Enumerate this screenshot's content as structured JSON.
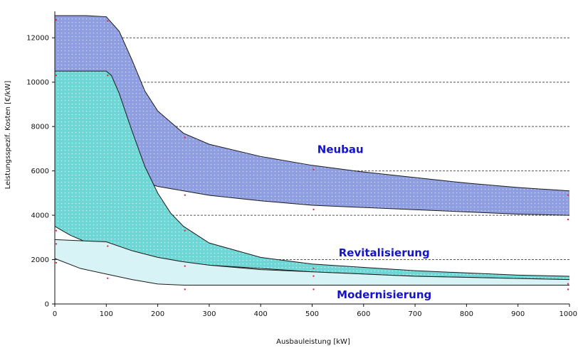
{
  "chart_data": {
    "type": "area",
    "title": "",
    "xlabel": "Ausbauleistung [kW]",
    "ylabel": "Leistungsspezif. Kosten [€/kW]",
    "xlim": [
      0,
      1000
    ],
    "ylim": [
      0,
      13000
    ],
    "xticks": [
      0,
      100,
      200,
      300,
      400,
      500,
      600,
      700,
      800,
      900,
      1000
    ],
    "yticks": [
      0,
      2000,
      4000,
      6000,
      8000,
      10000,
      12000
    ],
    "grid": "horizontal dashed",
    "legend": "none",
    "series": [
      {
        "name": "Neubau",
        "color": "#8f9ee0",
        "upper": [
          [
            0,
            13000
          ],
          [
            60,
            13000
          ],
          [
            100,
            12950
          ],
          [
            125,
            12300
          ],
          [
            150,
            11000
          ],
          [
            175,
            9600
          ],
          [
            200,
            8700
          ],
          [
            250,
            7700
          ],
          [
            300,
            7200
          ],
          [
            400,
            6650
          ],
          [
            500,
            6250
          ],
          [
            600,
            5950
          ],
          [
            700,
            5700
          ],
          [
            800,
            5450
          ],
          [
            900,
            5250
          ],
          [
            1000,
            5100
          ]
        ],
        "lower": [
          [
            0,
            13000
          ],
          [
            0,
            7600
          ],
          [
            30,
            7350
          ],
          [
            60,
            7000
          ],
          [
            100,
            6450
          ],
          [
            130,
            6000
          ],
          [
            160,
            5600
          ],
          [
            200,
            5300
          ],
          [
            250,
            5100
          ],
          [
            300,
            4900
          ],
          [
            400,
            4650
          ],
          [
            500,
            4450
          ],
          [
            600,
            4350
          ],
          [
            700,
            4250
          ],
          [
            800,
            4150
          ],
          [
            900,
            4050
          ],
          [
            1000,
            4000
          ]
        ]
      },
      {
        "name": "Revitalisierung",
        "color": "#6fd6d6",
        "upper": [
          [
            0,
            10500
          ],
          [
            100,
            10500
          ],
          [
            110,
            10300
          ],
          [
            125,
            9500
          ],
          [
            150,
            7800
          ],
          [
            175,
            6200
          ],
          [
            200,
            5000
          ],
          [
            225,
            4100
          ],
          [
            250,
            3500
          ],
          [
            300,
            2750
          ],
          [
            400,
            2100
          ],
          [
            500,
            1800
          ],
          [
            600,
            1650
          ],
          [
            700,
            1500
          ],
          [
            800,
            1400
          ],
          [
            900,
            1300
          ],
          [
            1000,
            1250
          ]
        ],
        "lower": [
          [
            0,
            3500
          ],
          [
            30,
            3100
          ],
          [
            60,
            2800
          ],
          [
            100,
            2500
          ],
          [
            150,
            2200
          ],
          [
            200,
            2000
          ],
          [
            250,
            1850
          ],
          [
            300,
            1750
          ],
          [
            400,
            1600
          ],
          [
            500,
            1450
          ],
          [
            600,
            1350
          ],
          [
            700,
            1250
          ],
          [
            800,
            1200
          ],
          [
            900,
            1150
          ],
          [
            1000,
            1100
          ]
        ]
      },
      {
        "name": "Modernisierung",
        "color": "#d8f3f5",
        "upper": [
          [
            0,
            2900
          ],
          [
            100,
            2800
          ],
          [
            150,
            2400
          ],
          [
            200,
            2100
          ],
          [
            250,
            1900
          ],
          [
            300,
            1750
          ],
          [
            400,
            1550
          ],
          [
            500,
            1450
          ],
          [
            600,
            1350
          ],
          [
            700,
            1250
          ],
          [
            800,
            1200
          ],
          [
            900,
            1150
          ],
          [
            1000,
            1100
          ]
        ],
        "lower": [
          [
            0,
            2050
          ],
          [
            50,
            1600
          ],
          [
            100,
            1350
          ],
          [
            150,
            1100
          ],
          [
            200,
            900
          ],
          [
            250,
            850
          ],
          [
            300,
            850
          ],
          [
            400,
            850
          ],
          [
            500,
            850
          ],
          [
            600,
            850
          ],
          [
            700,
            850
          ],
          [
            800,
            850
          ],
          [
            900,
            850
          ],
          [
            1000,
            850
          ]
        ]
      }
    ],
    "annotations": [
      {
        "text": "Neubau",
        "x": 555,
        "y": 6800
      },
      {
        "text": "Revitalisierung",
        "x": 640,
        "y": 2150
      },
      {
        "text": "Modernisierung",
        "x": 640,
        "y": 250
      }
    ]
  }
}
